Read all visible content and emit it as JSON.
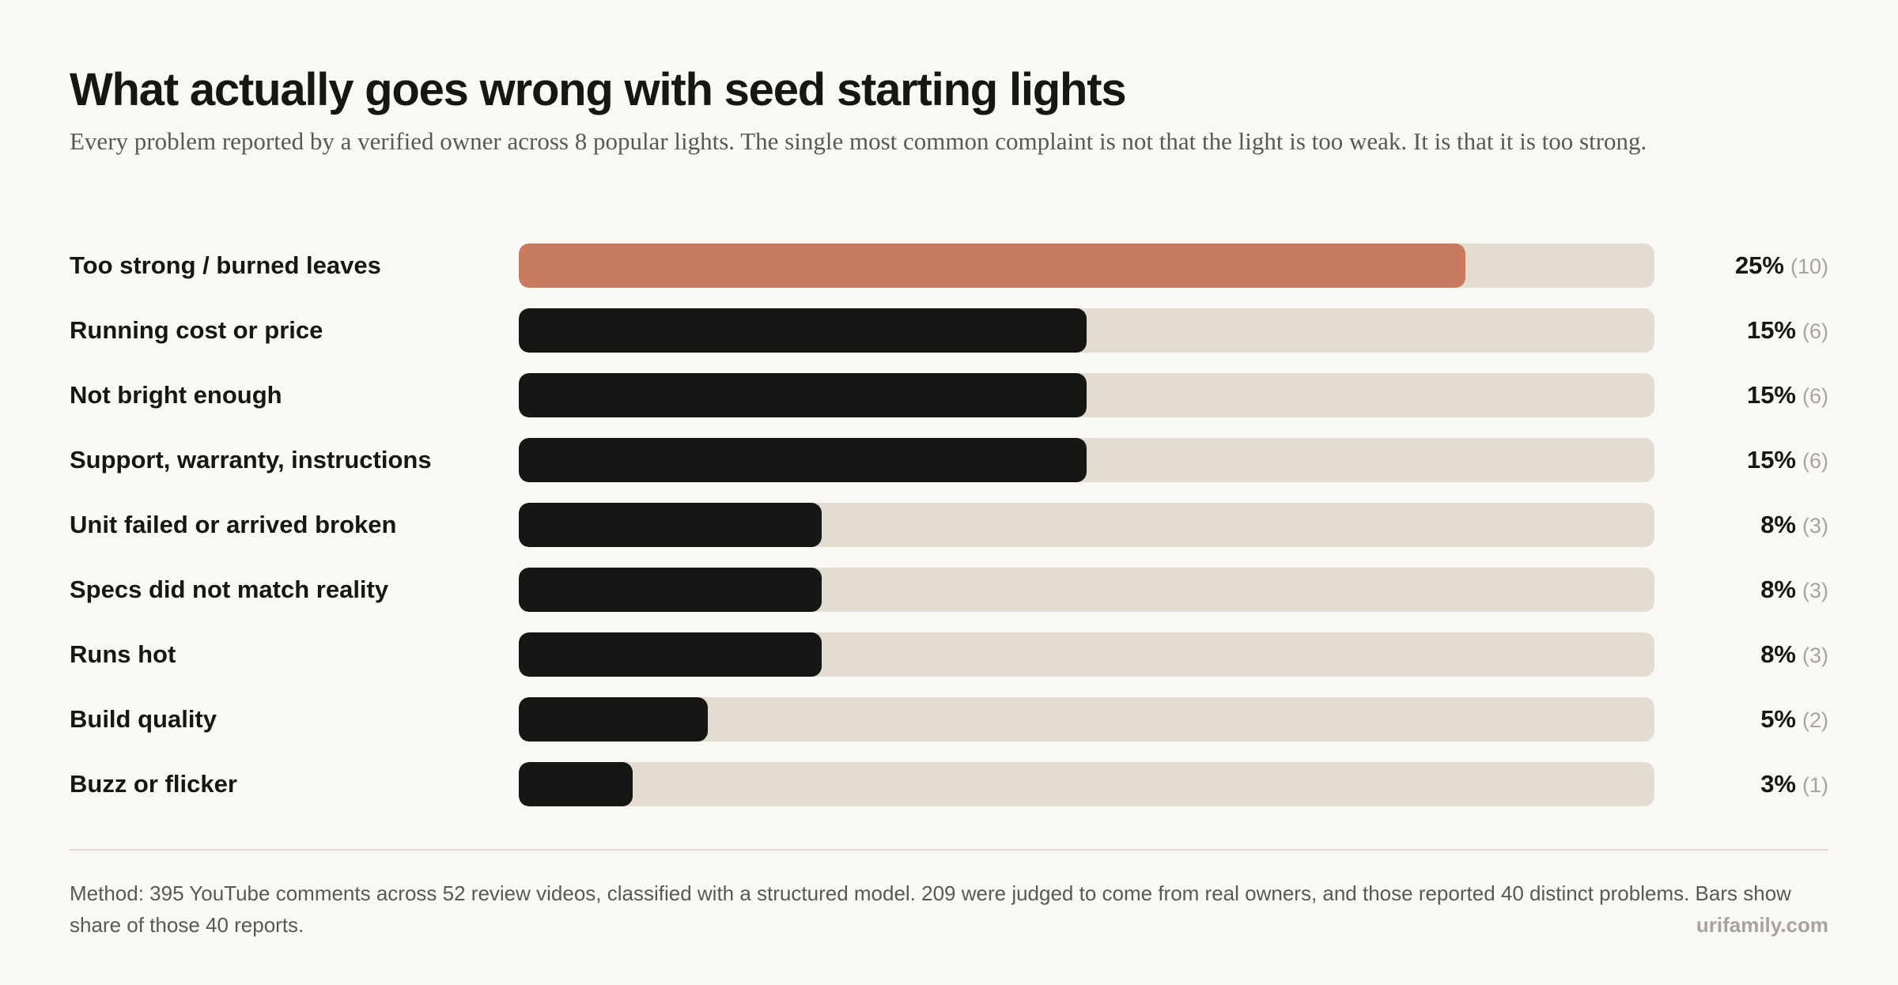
{
  "header": {
    "title": "What actually goes wrong with seed starting lights",
    "subtitle": "Every problem reported by a verified owner across 8 popular lights. The single most common complaint is not that the light is too weak. It is that it is too strong."
  },
  "colors": {
    "background": "#f9f8f4",
    "highlight_bar": "#c97b5f",
    "bar": "#161614",
    "track": "#e3dcd0"
  },
  "chart_data": {
    "type": "bar",
    "orientation": "horizontal",
    "xlim": [
      0,
      30
    ],
    "grid": false,
    "categories": [
      "Too strong / burned leaves",
      "Running cost or price",
      "Not bright enough",
      "Support, warranty, instructions",
      "Unit failed or arrived broken",
      "Specs did not match reality",
      "Runs hot",
      "Build quality",
      "Buzz or flicker"
    ],
    "values": [
      25,
      15,
      15,
      15,
      8,
      8,
      8,
      5,
      3
    ],
    "value_labels": [
      "25%",
      "15%",
      "15%",
      "15%",
      "8%",
      "8%",
      "8%",
      "5%",
      "3%"
    ],
    "counts": [
      "(10)",
      "(6)",
      "(6)",
      "(6)",
      "(3)",
      "(3)",
      "(3)",
      "(2)",
      "(1)"
    ],
    "highlight_index": 0
  },
  "footer": {
    "method": "Method: 395 YouTube comments across 52 review videos, classified with a structured model. 209 were judged to come from real owners, and those reported 40 distinct problems. Bars show share of those 40 reports.",
    "credit": "urifamily.com"
  }
}
